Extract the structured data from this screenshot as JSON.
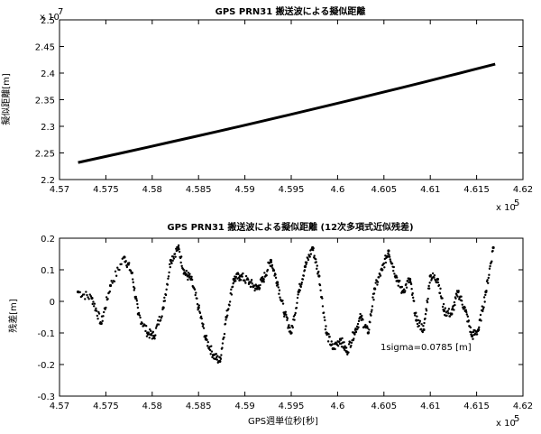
{
  "chart_data": [
    {
      "type": "line",
      "title": "GPS PRN31 搬送波による擬似距離",
      "xlabel": "",
      "ylabel": "擬似距離[m]",
      "x_multiplier_label": "x 10",
      "x_multiplier_exp": "5",
      "y_multiplier_label": "x 10",
      "y_multiplier_exp": "7",
      "xlim": [
        4.57,
        4.62
      ],
      "ylim": [
        2.2,
        2.5
      ],
      "xticks": [
        "4.57",
        "4.575",
        "4.58",
        "4.585",
        "4.59",
        "4.595",
        "4.6",
        "4.605",
        "4.61",
        "4.615",
        "4.62"
      ],
      "yticks": [
        "2.2",
        "2.25",
        "2.3",
        "2.35",
        "2.4",
        "2.45",
        "2.5"
      ],
      "grid": false,
      "series": [
        {
          "x": [
            4.572,
            4.5745,
            4.577,
            4.5795,
            4.582,
            4.5845,
            4.587,
            4.5895,
            4.592,
            4.5945,
            4.597,
            4.5995,
            4.602,
            4.6045,
            4.607,
            4.6095,
            4.612,
            4.6145,
            4.617
          ],
          "y": [
            2.232,
            2.2415,
            2.251,
            2.2607,
            2.2705,
            2.2803,
            2.2902,
            2.3002,
            2.3103,
            2.3205,
            2.3308,
            2.3412,
            2.3517,
            2.3623,
            2.373,
            2.3838,
            2.3947,
            2.4057,
            2.4168
          ]
        }
      ],
      "line_color": "#000000"
    },
    {
      "type": "scatter",
      "title": "GPS PRN31 搬送波による擬似距離 (12次多項式近似残差)",
      "xlabel": "GPS週単位秒[秒]",
      "ylabel": "残差[m]",
      "x_multiplier_label": "x 10",
      "x_multiplier_exp": "5",
      "xlim": [
        4.57,
        4.62
      ],
      "ylim": [
        -0.3,
        0.2
      ],
      "xticks": [
        "4.57",
        "4.575",
        "4.58",
        "4.585",
        "4.59",
        "4.595",
        "4.6",
        "4.605",
        "4.61",
        "4.615",
        "4.62"
      ],
      "yticks": [
        "-0.3",
        "-0.2",
        "-0.1",
        "0",
        "0.1",
        "0.2"
      ],
      "grid": false,
      "annotation": "1sigma=0.0785 [m]",
      "series": [
        {
          "x": [
            4.572,
            4.5735,
            4.5745,
            4.5755,
            4.577,
            4.5778,
            4.5785,
            4.5795,
            4.5802,
            4.5812,
            4.582,
            4.5828,
            4.5835,
            4.5842,
            4.585,
            4.5858,
            4.5866,
            4.5873,
            4.588,
            4.5888,
            4.5895,
            4.5905,
            4.5913,
            4.592,
            4.5928,
            4.5935,
            4.5943,
            4.595,
            4.5958,
            4.5965,
            4.5973,
            4.598,
            4.5988,
            4.5995,
            4.6003,
            4.601,
            4.6018,
            4.6025,
            4.6033,
            4.604,
            4.6048,
            4.6055,
            4.6063,
            4.607,
            4.6078,
            4.6085,
            4.6093,
            4.61,
            4.6108,
            4.6115,
            4.6123,
            4.613,
            4.6138,
            4.6145,
            4.6152,
            4.616,
            4.6168
          ],
          "y": [
            0.03,
            0.01,
            -0.07,
            0.05,
            0.14,
            0.09,
            -0.04,
            -0.1,
            -0.11,
            -0.02,
            0.13,
            0.17,
            0.09,
            0.07,
            -0.02,
            -0.12,
            -0.17,
            -0.19,
            -0.05,
            0.07,
            0.08,
            0.06,
            0.04,
            0.07,
            0.13,
            0.06,
            -0.04,
            -0.1,
            0.03,
            0.11,
            0.17,
            0.08,
            -0.1,
            -0.15,
            -0.12,
            -0.16,
            -0.1,
            -0.05,
            -0.1,
            0.04,
            0.1,
            0.16,
            0.08,
            0.03,
            0.07,
            -0.06,
            -0.09,
            0.08,
            0.07,
            -0.03,
            -0.04,
            0.03,
            -0.03,
            -0.11,
            -0.09,
            0.03,
            0.17
          ]
        }
      ],
      "point_color": "#000000"
    }
  ]
}
